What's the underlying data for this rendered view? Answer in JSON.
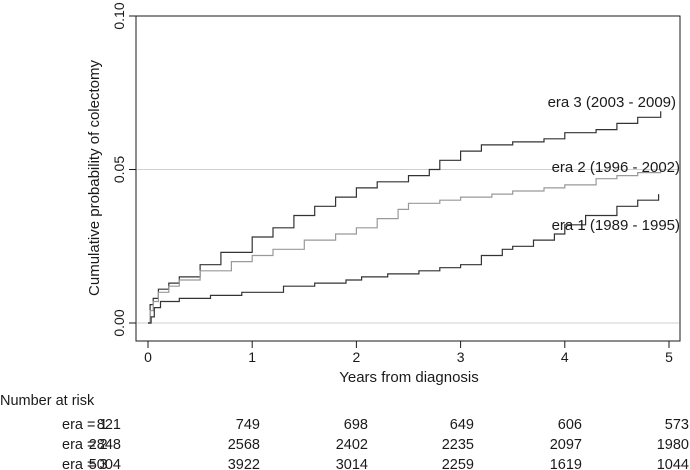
{
  "chart_data": {
    "type": "line",
    "step": true,
    "title": "",
    "xlabel": "Years from diagnosis",
    "ylabel": "Cumulative probability of colectomy",
    "xlim": [
      0,
      5
    ],
    "ylim": [
      0,
      0.1
    ],
    "x_ticks": [
      0,
      1,
      2,
      3,
      4,
      5
    ],
    "x_tick_labels": [
      "0",
      "1",
      "2",
      "3",
      "4",
      "5"
    ],
    "y_ticks": [
      0,
      0.05,
      0.1
    ],
    "y_tick_labels": [
      "0.00",
      "0.05",
      "0.10"
    ],
    "grid": "horizontal reference lines at y ticks",
    "legend": "none; series labelled at line ends",
    "series": [
      {
        "name": "era 3 (2003 - 2009)",
        "color": "#333333",
        "points": [
          [
            0,
            0
          ],
          [
            0.02,
            0.006
          ],
          [
            0.05,
            0.008
          ],
          [
            0.1,
            0.011
          ],
          [
            0.2,
            0.013
          ],
          [
            0.3,
            0.015
          ],
          [
            0.5,
            0.019
          ],
          [
            0.7,
            0.023
          ],
          [
            1.0,
            0.028
          ],
          [
            1.2,
            0.031
          ],
          [
            1.4,
            0.035
          ],
          [
            1.6,
            0.038
          ],
          [
            1.8,
            0.041
          ],
          [
            2.0,
            0.044
          ],
          [
            2.2,
            0.046
          ],
          [
            2.5,
            0.048
          ],
          [
            2.7,
            0.05
          ],
          [
            2.8,
            0.053
          ],
          [
            3.0,
            0.056
          ],
          [
            3.2,
            0.058
          ],
          [
            3.5,
            0.059
          ],
          [
            3.8,
            0.06
          ],
          [
            4.0,
            0.062
          ],
          [
            4.3,
            0.063
          ],
          [
            4.5,
            0.065
          ],
          [
            4.7,
            0.067
          ],
          [
            4.92,
            0.069
          ]
        ]
      },
      {
        "name": "era 2 (1996 - 2002)",
        "color": "#999999",
        "points": [
          [
            0,
            0
          ],
          [
            0.02,
            0.004
          ],
          [
            0.05,
            0.007
          ],
          [
            0.1,
            0.01
          ],
          [
            0.2,
            0.012
          ],
          [
            0.3,
            0.014
          ],
          [
            0.5,
            0.017
          ],
          [
            0.8,
            0.02
          ],
          [
            1.0,
            0.022
          ],
          [
            1.2,
            0.024
          ],
          [
            1.5,
            0.027
          ],
          [
            1.8,
            0.029
          ],
          [
            2.0,
            0.031
          ],
          [
            2.2,
            0.034
          ],
          [
            2.4,
            0.037
          ],
          [
            2.5,
            0.039
          ],
          [
            2.8,
            0.04
          ],
          [
            3.0,
            0.041
          ],
          [
            3.3,
            0.042
          ],
          [
            3.5,
            0.043
          ],
          [
            3.8,
            0.044
          ],
          [
            4.0,
            0.045
          ],
          [
            4.3,
            0.047
          ],
          [
            4.5,
            0.048
          ],
          [
            4.7,
            0.049
          ],
          [
            4.92,
            0.05
          ]
        ]
      },
      {
        "name": "era 1 (1989 - 1995)",
        "color": "#333333",
        "points": [
          [
            0,
            0
          ],
          [
            0.03,
            0.002
          ],
          [
            0.06,
            0.005
          ],
          [
            0.12,
            0.007
          ],
          [
            0.3,
            0.008
          ],
          [
            0.6,
            0.009
          ],
          [
            0.9,
            0.01
          ],
          [
            1.3,
            0.012
          ],
          [
            1.6,
            0.013
          ],
          [
            1.9,
            0.014
          ],
          [
            2.05,
            0.015
          ],
          [
            2.3,
            0.016
          ],
          [
            2.6,
            0.017
          ],
          [
            2.8,
            0.018
          ],
          [
            3.0,
            0.019
          ],
          [
            3.2,
            0.022
          ],
          [
            3.4,
            0.024
          ],
          [
            3.5,
            0.025
          ],
          [
            3.7,
            0.027
          ],
          [
            3.9,
            0.029
          ],
          [
            4.0,
            0.032
          ],
          [
            4.2,
            0.035
          ],
          [
            4.5,
            0.038
          ],
          [
            4.7,
            0.04
          ],
          [
            4.9,
            0.042
          ]
        ]
      }
    ],
    "risk_table": {
      "title": "Number at risk",
      "rows": [
        {
          "label": "era = 1",
          "values": [
            "821",
            "749",
            "698",
            "649",
            "606",
            "573"
          ]
        },
        {
          "label": "era = 2",
          "values": [
            "2848",
            "2568",
            "2402",
            "2235",
            "2097",
            "1980"
          ]
        },
        {
          "label": "era = 3",
          "values": [
            "5004",
            "3922",
            "3014",
            "2259",
            "1619",
            "1044"
          ]
        }
      ]
    }
  }
}
